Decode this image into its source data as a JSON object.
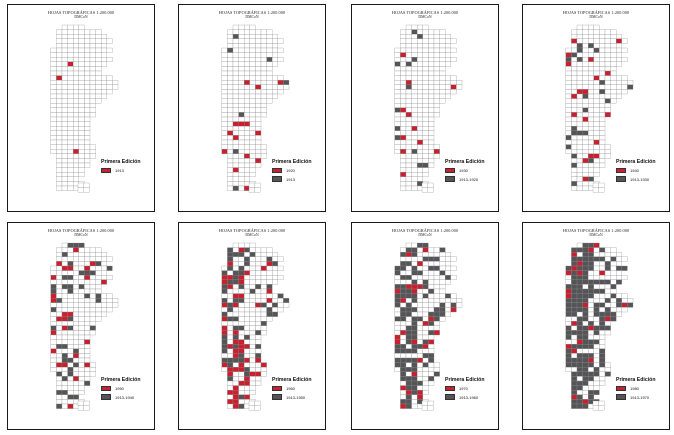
{
  "colors": {
    "new_edition": "#c8202f",
    "previous_editions": "#555558",
    "frame": "#1a1a1a",
    "grid": "#8a8a8a"
  },
  "panels": [
    {
      "title": "HOJAS TOPOGRÁFICAS 1:200.000",
      "subtitle": "DMCoN",
      "legend_title": "Primera Edición",
      "legend_new": "1913",
      "legend_old": ""
    },
    {
      "title": "HOJAS TOPOGRÁFICAS 1:200.000",
      "subtitle": "DMCoN",
      "legend_title": "Primera Edición",
      "legend_new": "1920",
      "legend_old": "1913"
    },
    {
      "title": "HOJAS TOPOGRÁFICAS 1:200.000",
      "subtitle": "DMCoN",
      "legend_title": "Primera Edición",
      "legend_new": "1930",
      "legend_old": "1913-1920"
    },
    {
      "title": "HOJAS TOPOGRÁFICAS 1:200.000",
      "subtitle": "DMCoN",
      "legend_title": "Primera Edición",
      "legend_new": "1940",
      "legend_old": "1913-1930"
    },
    {
      "title": "HOJAS TOPOGRÁFICAS 1:200.000",
      "subtitle": "DMCoN",
      "legend_title": "Primera Edición",
      "legend_new": "1950",
      "legend_old": "1913-1940"
    },
    {
      "title": "HOJAS TOPOGRÁFICAS 1:200.000",
      "subtitle": "DMCoN",
      "legend_title": "Primera Edición",
      "legend_new": "1960",
      "legend_old": "1913-1950"
    },
    {
      "title": "HOJAS TOPOGRÁFICAS 1:200.000",
      "subtitle": "DMCoN",
      "legend_title": "Primera Edición",
      "legend_new": "1970",
      "legend_old": "1913-1960"
    },
    {
      "title": "HOJAS TOPOGRÁFICAS 1:200.000",
      "subtitle": "DMCoN",
      "legend_title": "Primera Edición",
      "legend_new": "1980",
      "legend_old": "1913-1970"
    }
  ]
}
